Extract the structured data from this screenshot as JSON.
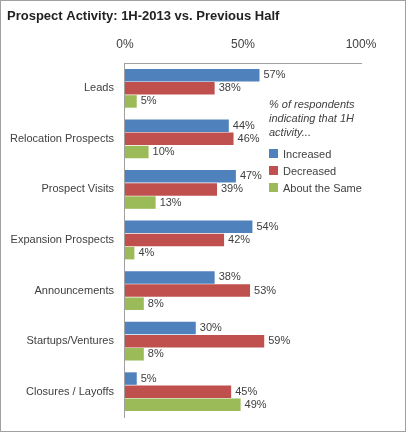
{
  "chart_data": {
    "type": "bar",
    "orientation": "horizontal",
    "title": "Prospect Activity: 1H-2013 vs. Previous Half",
    "legend_title": "% of respondents indicating that 1H activity...",
    "categories": [
      "Leads",
      "Relocation Prospects",
      "Prospect Visits",
      "Expansion Prospects",
      "Announcements",
      "Startups/Ventures",
      "Closures / Layoffs"
    ],
    "series": [
      {
        "name": "Increased",
        "color": "#4f81bd",
        "values": [
          57,
          44,
          47,
          54,
          38,
          30,
          5
        ],
        "value_labels": [
          "57%",
          "44%",
          "47%",
          "54%",
          "38%",
          "30%",
          "5%"
        ]
      },
      {
        "name": "Decreased",
        "color": "#c0504d",
        "values": [
          38,
          46,
          39,
          42,
          53,
          59,
          45
        ],
        "value_labels": [
          "38%",
          "46%",
          "39%",
          "42%",
          "53%",
          "59%",
          "45%"
        ]
      },
      {
        "name": "About the Same",
        "color": "#9bbb59",
        "values": [
          5,
          10,
          13,
          4,
          8,
          8,
          49
        ],
        "value_labels": [
          "5%",
          "10%",
          "13%",
          "4%",
          "8%",
          "8%",
          "49%"
        ]
      }
    ],
    "xlim": [
      0,
      100
    ],
    "xticks": [
      {
        "value": 0,
        "label": "0%"
      },
      {
        "value": 50,
        "label": "50%"
      },
      {
        "value": 100,
        "label": "100%"
      }
    ],
    "grid": false,
    "legend": "right",
    "data_labels": true
  }
}
